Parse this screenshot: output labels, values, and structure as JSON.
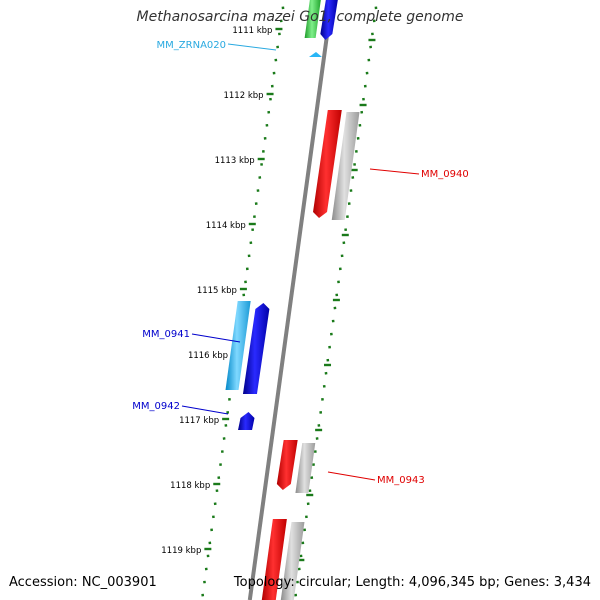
{
  "title": "Methanosarcina mazei Go1, complete genome",
  "footer": {
    "accession": "Accession: NC_003901",
    "topology": "Topology: circular; Length: 4,096,345 bp; Genes: 3,434"
  },
  "colors": {
    "backbone": "#808080",
    "tick": "#1a7a1a",
    "gene_red": "#ff0000",
    "gene_blue": "#0000e6",
    "gene_cyan": "#29b6f6",
    "gene_green": "#2ecc40",
    "gene_gray": "#b3b3b3",
    "label_red": "#e00000",
    "label_blue": "#0000cc",
    "label_cyan": "#29a9e0"
  },
  "ticks": [
    "1111 kbp",
    "1112 kbp",
    "1113 kbp",
    "1114 kbp",
    "1115 kbp",
    "1116 kbp",
    "1117 kbp",
    "1118 kbp",
    "1119 kbp"
  ],
  "gene_labels": [
    "MM_ZRNA020",
    "MM_0940",
    "MM_0941",
    "MM_0942",
    "MM_0943"
  ]
}
